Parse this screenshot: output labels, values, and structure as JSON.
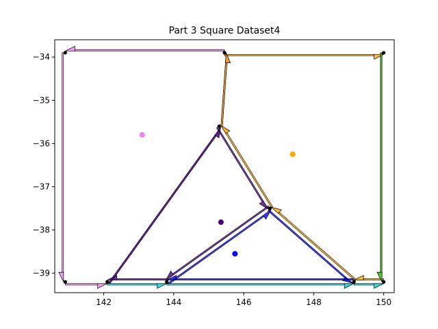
{
  "chart_data": {
    "type": "scatter",
    "title": "Part 3 Square Dataset4",
    "xlabel": "",
    "ylabel": "",
    "xlim": [
      140.6,
      150.3
    ],
    "ylim": [
      -39.45,
      -33.6
    ],
    "xticks": [
      142,
      144,
      146,
      148,
      150
    ],
    "yticks": [
      -34,
      -35,
      -36,
      -37,
      -38,
      -39
    ],
    "xtick_labels": [
      "142",
      "144",
      "146",
      "148",
      "150"
    ],
    "ytick_labels": [
      "−34",
      "−35",
      "−36",
      "−37",
      "−38",
      "−39"
    ],
    "grid": false,
    "vertices": [
      {
        "x": 140.9,
        "y": -33.9
      },
      {
        "x": 145.45,
        "y": -33.9
      },
      {
        "x": 150.0,
        "y": -33.9
      },
      {
        "x": 145.3,
        "y": -35.6
      },
      {
        "x": 146.75,
        "y": -37.5
      },
      {
        "x": 140.9,
        "y": -39.2
      },
      {
        "x": 142.1,
        "y": -39.2
      },
      {
        "x": 143.8,
        "y": -39.2
      },
      {
        "x": 149.15,
        "y": -39.2
      },
      {
        "x": 150.0,
        "y": -39.2
      }
    ],
    "centroids": [
      {
        "x": 143.1,
        "y": -35.8,
        "color": "#ee82ee"
      },
      {
        "x": 147.4,
        "y": -36.25,
        "color": "#ffa500"
      },
      {
        "x": 145.35,
        "y": -37.82,
        "color": "#4b0082"
      },
      {
        "x": 145.75,
        "y": -38.55,
        "color": "#0000ff"
      }
    ],
    "edges": [
      {
        "from": [
          145.45,
          -33.9
        ],
        "to": [
          140.9,
          -33.9
        ],
        "color": "#ee82ee"
      },
      {
        "from": [
          140.9,
          -33.9
        ],
        "to": [
          140.9,
          -39.2
        ],
        "color": "#ee82ee"
      },
      {
        "from": [
          140.9,
          -39.2
        ],
        "to": [
          142.1,
          -39.2
        ],
        "color": "#ee82ee"
      },
      {
        "from": [
          142.1,
          -39.2
        ],
        "to": [
          145.3,
          -35.6
        ],
        "color": "#ee82ee"
      },
      {
        "from": [
          145.3,
          -35.6
        ],
        "to": [
          145.45,
          -33.9
        ],
        "color": "#ee82ee"
      },
      {
        "from": [
          145.45,
          -33.9
        ],
        "to": [
          150.0,
          -33.9
        ],
        "color": "#ffa500"
      },
      {
        "from": [
          150.0,
          -33.9
        ],
        "to": [
          150.0,
          -39.2
        ],
        "color": "#ffa500"
      },
      {
        "from": [
          150.0,
          -39.2
        ],
        "to": [
          149.15,
          -39.2
        ],
        "color": "#ffa500"
      },
      {
        "from": [
          149.15,
          -39.2
        ],
        "to": [
          146.75,
          -37.5
        ],
        "color": "#ffa500"
      },
      {
        "from": [
          146.75,
          -37.5
        ],
        "to": [
          145.3,
          -35.6
        ],
        "color": "#ffa500"
      },
      {
        "from": [
          145.3,
          -35.6
        ],
        "to": [
          145.45,
          -33.9
        ],
        "color": "#ffa500"
      },
      {
        "from": [
          145.3,
          -35.6
        ],
        "to": [
          146.75,
          -37.5
        ],
        "color": "#4b0082"
      },
      {
        "from": [
          146.75,
          -37.5
        ],
        "to": [
          143.8,
          -39.2
        ],
        "color": "#4b0082"
      },
      {
        "from": [
          143.8,
          -39.2
        ],
        "to": [
          142.1,
          -39.2
        ],
        "color": "#4b0082"
      },
      {
        "from": [
          142.1,
          -39.2
        ],
        "to": [
          145.3,
          -35.6
        ],
        "color": "#4b0082"
      },
      {
        "from": [
          143.8,
          -39.2
        ],
        "to": [
          146.75,
          -37.5
        ],
        "color": "#0000ff"
      },
      {
        "from": [
          146.75,
          -37.5
        ],
        "to": [
          149.15,
          -39.2
        ],
        "color": "#0000ff"
      },
      {
        "from": [
          149.15,
          -39.2
        ],
        "to": [
          143.8,
          -39.2
        ],
        "color": "#0000ff"
      },
      {
        "from": [
          142.1,
          -39.2
        ],
        "to": [
          143.8,
          -39.2
        ],
        "color": "#00ced1"
      },
      {
        "from": [
          143.8,
          -39.2
        ],
        "to": [
          149.15,
          -39.2
        ],
        "color": "#00ced1"
      },
      {
        "from": [
          149.15,
          -39.2
        ],
        "to": [
          150.0,
          -39.2
        ],
        "color": "#00ced1"
      },
      {
        "from": [
          150.0,
          -33.9
        ],
        "to": [
          150.0,
          -39.2
        ],
        "color": "#32cd32"
      }
    ]
  }
}
